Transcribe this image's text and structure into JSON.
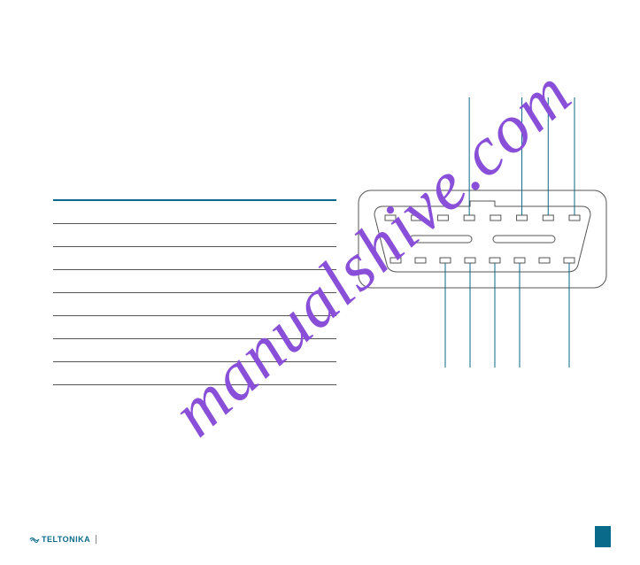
{
  "colors": {
    "accent": "#0a6a8a",
    "watermark": "#8a4fd9",
    "corner": "#0a6a8a",
    "rule": "#555555"
  },
  "table": {
    "header_border_color": "#0a6a8a",
    "row_count": 8
  },
  "connector": {
    "stroke": "#555555",
    "lead_color": "#0a6a8a",
    "top_pin_count": 8,
    "bottom_pin_count": 8,
    "top_leads": [
      3,
      5,
      6,
      7
    ],
    "bottom_leads": [
      2,
      3,
      4,
      5,
      7
    ]
  },
  "watermark": {
    "text": "manualshive.com",
    "color": "#8a4fd9",
    "fontsize": 78
  },
  "footer": {
    "logo_text": "TELTONIKA",
    "logo_color": "#0a6a8a"
  }
}
